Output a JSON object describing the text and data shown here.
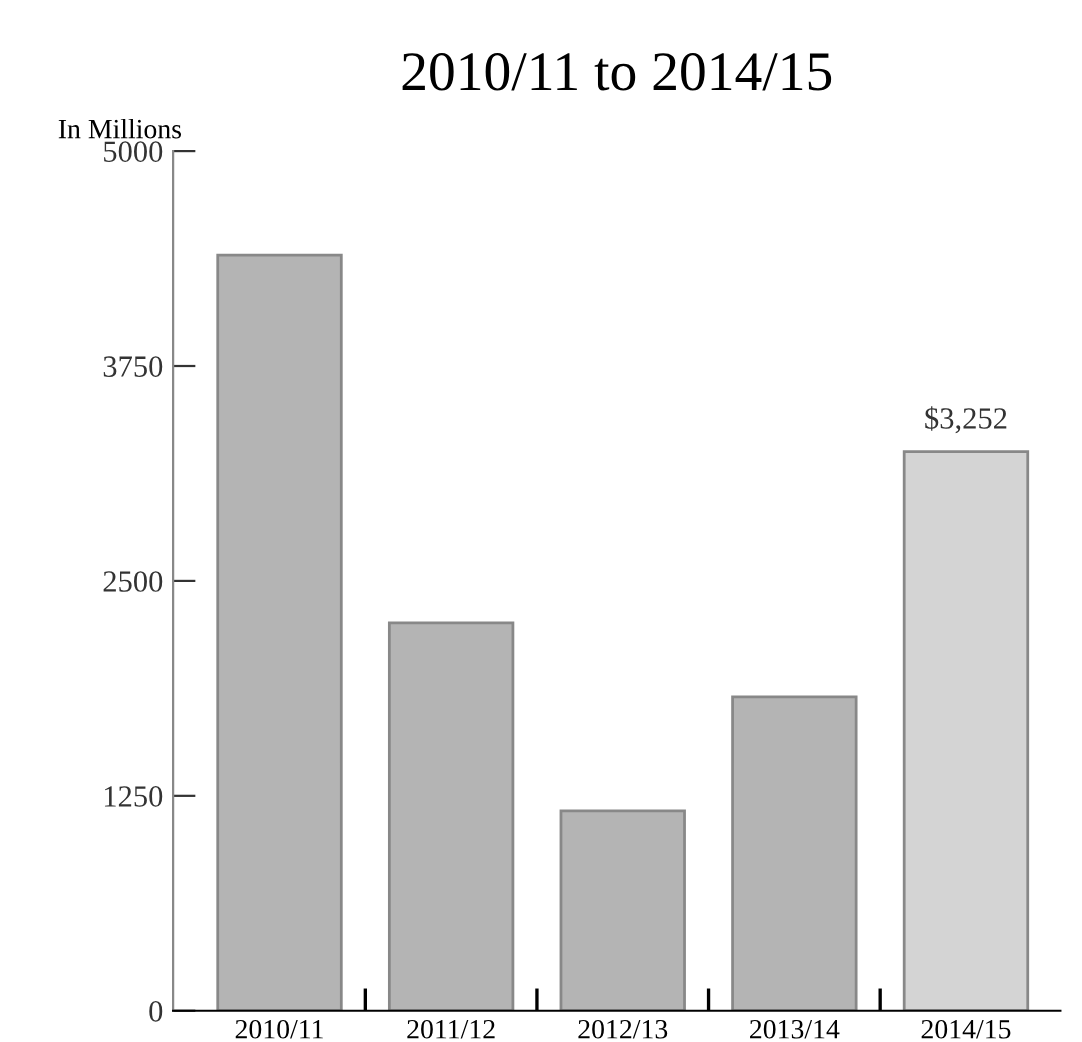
{
  "chart_data": {
    "type": "bar",
    "title": "2010/11 to 2014/15",
    "ylabel": "In Millions",
    "categories": [
      "2010/11",
      "2011/12",
      "2012/13",
      "2013/14",
      "2014/15"
    ],
    "values": [
      4395,
      2256,
      1163,
      1826,
      3252
    ],
    "colors": [
      "#b4b4b4",
      "#b4b4b4",
      "#b4b4b4",
      "#b4b4b4",
      "#d4d4d4"
    ],
    "value_labels": [
      null,
      null,
      null,
      null,
      "$3,252"
    ],
    "ylim": [
      0,
      5000
    ],
    "yticks": [
      0,
      1250,
      2500,
      3750,
      5000
    ],
    "grid": false,
    "legend": false
  }
}
